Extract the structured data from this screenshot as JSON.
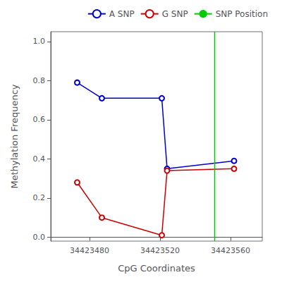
{
  "chart_data": {
    "type": "line",
    "xlabel": "CpG Coordinates",
    "ylabel": "Methylation Frequency",
    "x": [
      34423473,
      34423487,
      34423521,
      34423524,
      34423562
    ],
    "series": [
      {
        "name": "A SNP",
        "color": "#0000cc",
        "values": [
          0.79,
          0.71,
          0.71,
          0.35,
          0.39
        ]
      },
      {
        "name": "G SNP",
        "color": "#cc0000",
        "values": [
          0.28,
          0.1,
          0.01,
          0.34,
          0.35
        ]
      },
      {
        "name": "SNP Position",
        "type": "vline",
        "color": "#00cc00",
        "x": 34423551
      }
    ],
    "xlim": [
      34423458,
      34423578
    ],
    "ylim": [
      -0.02,
      1.05
    ],
    "xticks": [
      34423480,
      34423520,
      34423560
    ],
    "yticks": [
      {
        "value": 0,
        "label": "0.0"
      },
      0.2,
      0.4,
      0.6,
      0.8,
      {
        "value": 1,
        "label": "1.0"
      }
    ],
    "grid": false,
    "legend": "upper right",
    "marker": "circle"
  }
}
